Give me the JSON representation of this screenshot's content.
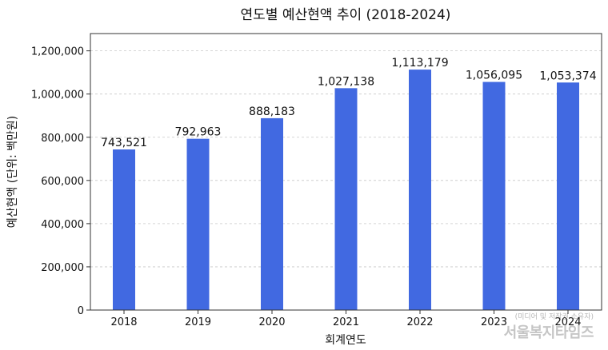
{
  "chart_data": {
    "type": "bar",
    "title": "연도별 예산현액 추이 (2018-2024)",
    "xlabel": "회계연도",
    "ylabel": "예산현액 (단위: 백만원)",
    "categories": [
      "2018",
      "2019",
      "2020",
      "2021",
      "2022",
      "2023",
      "2024"
    ],
    "values": [
      743521,
      792963,
      888183,
      1027138,
      1113179,
      1056095,
      1053374
    ],
    "value_labels": [
      "743,521",
      "792,963",
      "888,183",
      "1,027,138",
      "1,113,179",
      "1,056,095",
      "1,053,374"
    ],
    "ylim": [
      0,
      1280000
    ],
    "yticks": [
      0,
      200000,
      400000,
      600000,
      800000,
      1000000,
      1200000
    ],
    "ytick_labels": [
      "0",
      "200,000",
      "400,000",
      "600,000",
      "800,000",
      "1,000,000",
      "1,200,000"
    ],
    "grid": "y-dashed",
    "bar_color": "#4169e1"
  },
  "watermark": {
    "small": "(미디어 및 저작권 소유자)",
    "big": "서울복지타임즈"
  }
}
